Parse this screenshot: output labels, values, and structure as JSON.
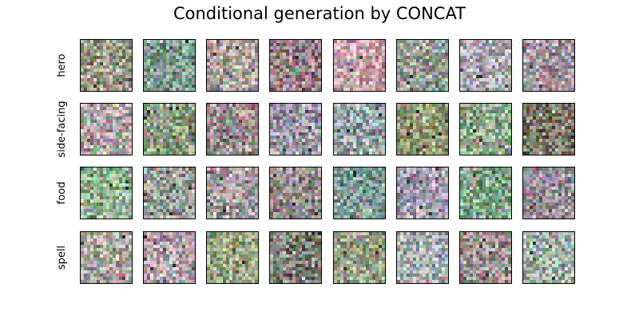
{
  "title": "Conditional generation by CONCAT",
  "rows": [
    {
      "label": "hero",
      "tiles": [
        {
          "tint": "#9c9a86"
        },
        {
          "tint": "#7f9c8e"
        },
        {
          "tint": "#b0a29c"
        },
        {
          "tint": "#9a7f86"
        },
        {
          "tint": "#c9a3a8"
        },
        {
          "tint": "#96a093"
        },
        {
          "tint": "#b3acb5"
        },
        {
          "tint": "#a3949c"
        }
      ]
    },
    {
      "label": "side-facing",
      "tiles": [
        {
          "tint": "#b5a6a6"
        },
        {
          "tint": "#8f9d7f"
        },
        {
          "tint": "#9c8c8c"
        },
        {
          "tint": "#9d97a6"
        },
        {
          "tint": "#97a4a5"
        },
        {
          "tint": "#90986f"
        },
        {
          "tint": "#8fa88a"
        },
        {
          "tint": "#7c7766"
        }
      ]
    },
    {
      "label": "food",
      "tiles": [
        {
          "tint": "#92b28f"
        },
        {
          "tint": "#9aa29a"
        },
        {
          "tint": "#a7a3a3"
        },
        {
          "tint": "#958c86"
        },
        {
          "tint": "#7f9a94"
        },
        {
          "tint": "#a79fb4"
        },
        {
          "tint": "#7fa887"
        },
        {
          "tint": "#9a8f9a"
        }
      ]
    },
    {
      "label": "spell",
      "tiles": [
        {
          "tint": "#aaa89f"
        },
        {
          "tint": "#b8a4ad"
        },
        {
          "tint": "#98a282"
        },
        {
          "tint": "#7c7c70"
        },
        {
          "tint": "#9ca386"
        },
        {
          "tint": "#a7b0b3"
        },
        {
          "tint": "#a18f91"
        },
        {
          "tint": "#a3b1a6"
        }
      ]
    }
  ]
}
